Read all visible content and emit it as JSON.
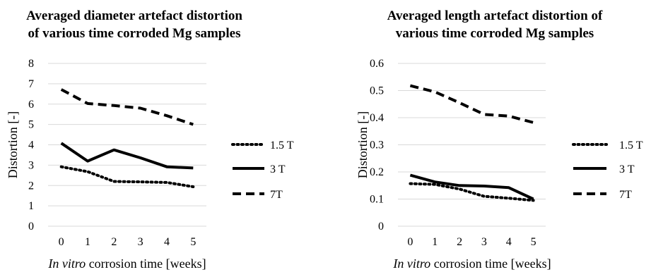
{
  "chart_data": [
    {
      "type": "line",
      "title_lines": [
        "Averaged diameter artefact distortion",
        "of various time corroded Mg samples"
      ],
      "xlabel_italic": "In vitro",
      "xlabel_rest": " corrosion time [weeks]",
      "ylabel": "Distortion [-]",
      "categories": [
        "0",
        "1",
        "2",
        "3",
        "4",
        "5"
      ],
      "ylim": [
        0,
        8
      ],
      "yticks": [
        "0",
        "1",
        "2",
        "3",
        "4",
        "5",
        "6",
        "7",
        "8"
      ],
      "grid": true,
      "legend_position": "right",
      "series": [
        {
          "name": "1.5 T",
          "style": "dotted",
          "color": "#000000",
          "values": [
            2.92,
            2.68,
            2.2,
            2.18,
            2.15,
            1.94
          ]
        },
        {
          "name": "3 T",
          "style": "solid",
          "color": "#000000",
          "values": [
            4.08,
            3.2,
            3.75,
            3.36,
            2.92,
            2.86
          ]
        },
        {
          "name": "7T",
          "style": "dashed",
          "color": "#000000",
          "values": [
            6.72,
            6.03,
            5.93,
            5.8,
            5.43,
            5.0
          ]
        }
      ]
    },
    {
      "type": "line",
      "title_lines": [
        "Averaged length artefact distortion of",
        "various time corroded Mg samples"
      ],
      "xlabel_italic": "In vitro",
      "xlabel_rest": " corrosion time [weeks]",
      "ylabel": "Distortion [-]",
      "categories": [
        "0",
        "1",
        "2",
        "3",
        "4",
        "5"
      ],
      "ylim": [
        0,
        0.6
      ],
      "yticks": [
        "0",
        "0.1",
        "0.2",
        "0.3",
        "0.4",
        "0.5",
        "0.6"
      ],
      "grid": true,
      "legend_position": "right",
      "series": [
        {
          "name": "1.5 T",
          "style": "dotted",
          "color": "#000000",
          "values": [
            0.157,
            0.154,
            0.137,
            0.11,
            0.103,
            0.095
          ]
        },
        {
          "name": "3 T",
          "style": "solid",
          "color": "#000000",
          "values": [
            0.188,
            0.163,
            0.15,
            0.148,
            0.142,
            0.1
          ]
        },
        {
          "name": "7T",
          "style": "dashed",
          "color": "#000000",
          "values": [
            0.518,
            0.495,
            0.455,
            0.412,
            0.406,
            0.382
          ]
        }
      ]
    }
  ]
}
